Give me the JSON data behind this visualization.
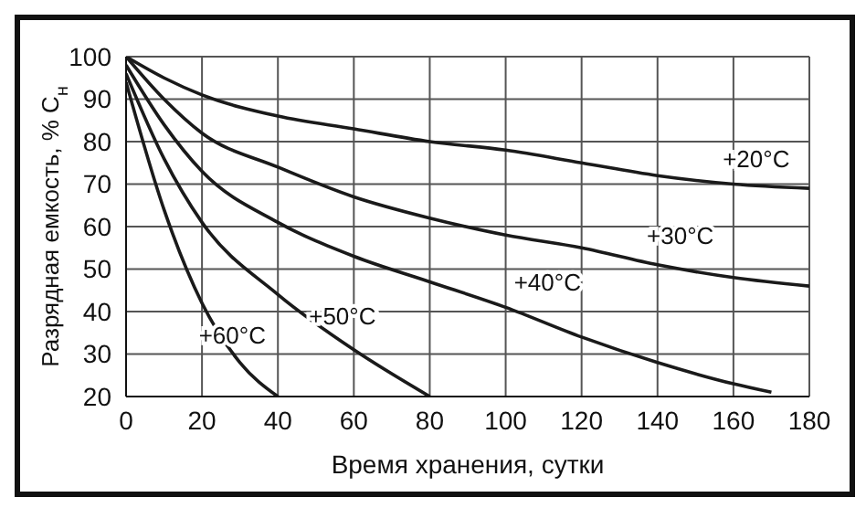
{
  "chart_data": {
    "type": "line",
    "xlabel": "Время хранения, сутки",
    "ylabel": "Разрядная емкость, % C$_{н}$",
    "xlim": [
      0,
      180
    ],
    "xticks": [
      0,
      20,
      40,
      60,
      80,
      100,
      120,
      140,
      160,
      180
    ],
    "ylim": [
      20,
      100
    ],
    "yticks": [
      20,
      30,
      40,
      50,
      60,
      70,
      80,
      90,
      100
    ],
    "grid": true,
    "marker": "none",
    "line_style": "solid",
    "series": [
      {
        "color": "#1a1a1a",
        "x": [
          0,
          10,
          20,
          40,
          60,
          80,
          100,
          120,
          140,
          160,
          180
        ],
        "values": [
          100,
          95,
          91,
          86,
          83,
          80,
          78,
          75,
          72,
          70,
          69
        ]
      },
      {
        "color": "#1a1a1a",
        "x": [
          0,
          10,
          20,
          40,
          60,
          80,
          100,
          120,
          140,
          160,
          180
        ],
        "values": [
          100,
          90,
          82,
          74,
          67,
          62,
          58,
          55,
          51,
          48,
          46
        ]
      },
      {
        "color": "#1a1a1a",
        "x": [
          0,
          10,
          20,
          40,
          60,
          80,
          100,
          120,
          140,
          160,
          170
        ],
        "values": [
          98,
          84,
          73,
          61,
          53,
          47,
          41,
          34,
          28,
          23,
          21
        ]
      },
      {
        "color": "#1a1a1a",
        "x": [
          0,
          10,
          20,
          40,
          60,
          80
        ],
        "values": [
          96,
          76,
          61,
          44,
          31,
          20
        ]
      },
      {
        "color": "#1a1a1a",
        "x": [
          0,
          10,
          20,
          30,
          40
        ],
        "values": [
          94,
          64,
          42,
          28,
          20
        ]
      }
    ],
    "annotations": [
      "+20°C",
      "+30°C",
      "+40°C",
      "+50°C",
      "+60°C"
    ]
  }
}
